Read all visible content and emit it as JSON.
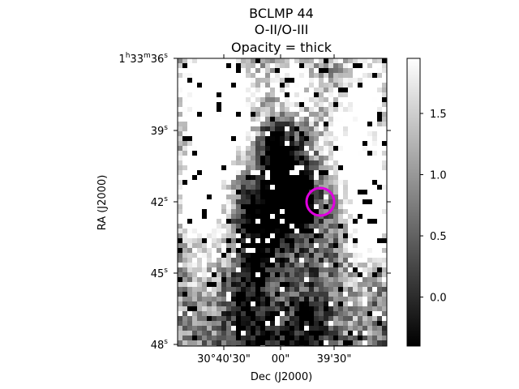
{
  "chart_data": {
    "type": "heatmap",
    "title_lines": [
      "BCLMP 44",
      "O-II/O-III",
      "Opacity = thick"
    ],
    "xlabel": "Dec (J2000)",
    "ylabel": "RA (J2000)",
    "xticks": [
      {
        "value": "30°40'30\"",
        "label": "30°40'30\""
      },
      {
        "value": "30°40'00\"",
        "label": "00\""
      },
      {
        "value": "30°39'30\"",
        "label": "39'30\""
      }
    ],
    "yticks": [
      {
        "label_base": "1",
        "label_h": "h",
        "label_mid": "33",
        "label_m": "m",
        "label_s_val": "36",
        "label_s": "s"
      },
      {
        "label_s_val": "39",
        "label_s": "s"
      },
      {
        "label_s_val": "42",
        "label_s": "s"
      },
      {
        "label_s_val": "45",
        "label_s": "s"
      },
      {
        "label_s_val": "48",
        "label_s": "s"
      }
    ],
    "colorbar": {
      "colormap": "gray",
      "range": [
        -0.4,
        1.95
      ],
      "tick_labels": [
        "0.0",
        "0.5",
        "1.0",
        "1.5"
      ],
      "ticks": [
        0.0,
        0.5,
        1.0,
        1.5
      ]
    },
    "marker": {
      "shape": "circle",
      "color": "#e000e0"
    }
  }
}
